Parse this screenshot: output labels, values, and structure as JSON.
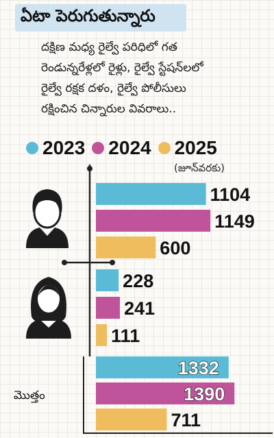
{
  "header": {
    "title": "ఏటా పెరుగుతున్నారు",
    "subtitle_lines": [
      "దక్షిణ మధ్య రైల్వే పరిధిలో గత",
      "రెండున్నరేళ్లలో రైళ్లు, రైల్వే స్టేషన్‌లలో",
      "రైల్వే రక్షక దళం, రైల్వే పోలీసులు",
      "రక్షించిన చిన్నారుల వివరాలు.."
    ]
  },
  "legend": {
    "items": [
      {
        "label": "2023",
        "color": "#5bbad5"
      },
      {
        "label": "2024",
        "color": "#c0549a"
      },
      {
        "label": "2025",
        "color": "#f0bd5e"
      }
    ],
    "note": "(జూన్‌వరకు)"
  },
  "chart_data": {
    "type": "bar",
    "orientation": "horizontal",
    "categories": [
      "boys",
      "girls",
      "మొత్తం"
    ],
    "category_icons": [
      "boy-icon",
      "girl-icon",
      ""
    ],
    "series": [
      {
        "name": "2023",
        "color": "#5bbad5",
        "values": [
          1104,
          228,
          1332
        ]
      },
      {
        "name": "2024",
        "color": "#c0549a",
        "values": [
          1149,
          241,
          1390
        ]
      },
      {
        "name": "2025",
        "color": "#f0bd5e",
        "values": [
          600,
          111,
          711
        ]
      }
    ],
    "total_label": "మొత్తం"
  }
}
